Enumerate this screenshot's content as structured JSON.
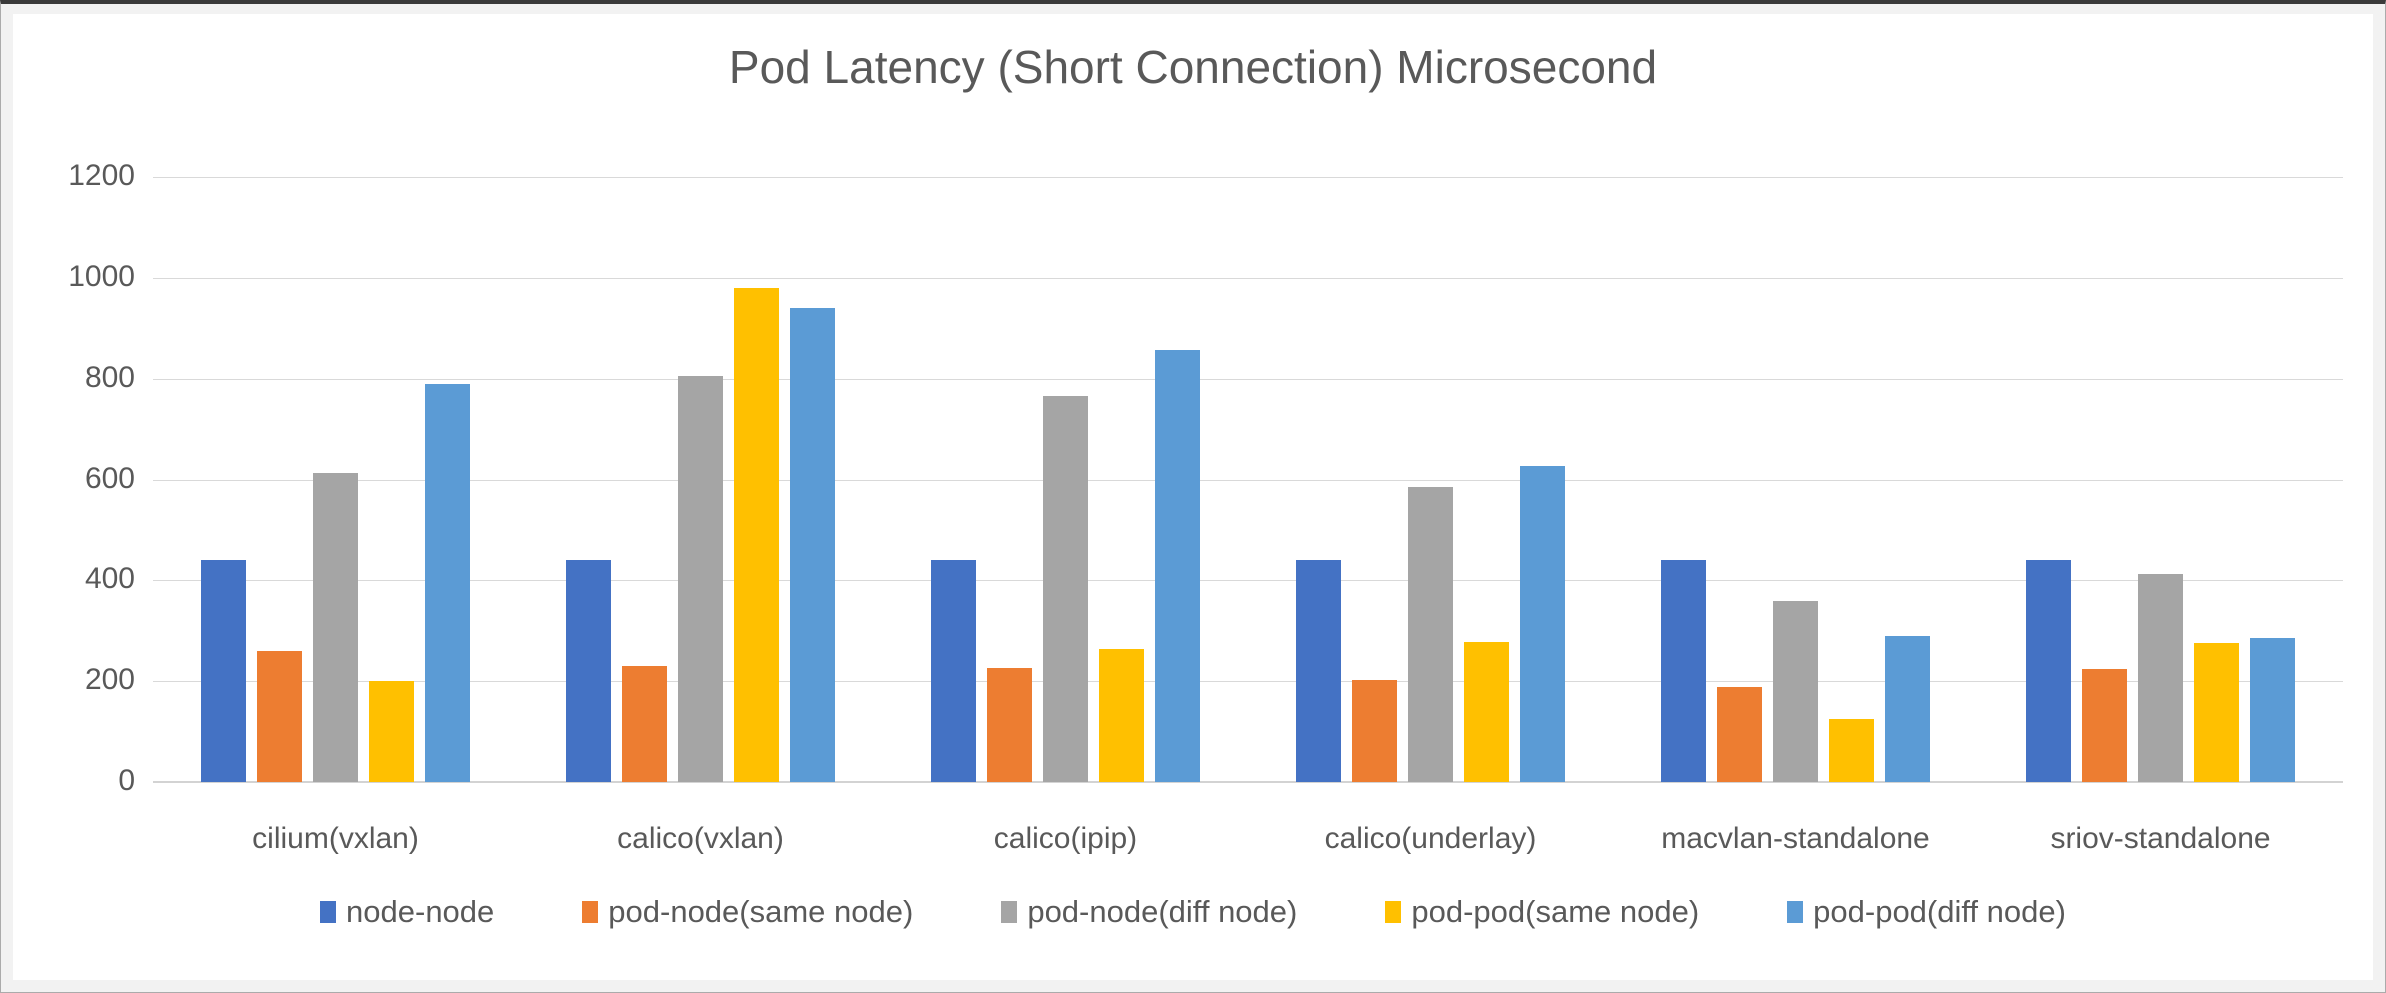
{
  "chart_data": {
    "type": "bar",
    "title": "Pod Latency (Short Connection) Microsecond",
    "categories": [
      "cilium(vxlan)",
      "calico(vxlan)",
      "calico(ipip)",
      "calico(underlay)",
      "macvlan-standalone",
      "sriov-standalone"
    ],
    "series": [
      {
        "name": "node-node",
        "color": "#4472C4",
        "values": [
          440,
          440,
          440,
          440,
          440,
          440
        ]
      },
      {
        "name": "pod-node(same node)",
        "color": "#ED7D31",
        "values": [
          260,
          230,
          226,
          203,
          188,
          224
        ]
      },
      {
        "name": "pod-node(diff node)",
        "color": "#A5A5A5",
        "values": [
          613,
          805,
          765,
          586,
          359,
          413
        ]
      },
      {
        "name": "pod-pod(same node)",
        "color": "#FFC000",
        "values": [
          200,
          980,
          264,
          278,
          125,
          276
        ]
      },
      {
        "name": "pod-pod(diff node)",
        "color": "#5B9BD5",
        "values": [
          790,
          940,
          856,
          627,
          290,
          285
        ]
      }
    ],
    "xlabel": "",
    "ylabel": "",
    "ylim": [
      0,
      1200
    ],
    "yticks": [
      0,
      200,
      400,
      600,
      800,
      1000,
      1200
    ],
    "grid": true,
    "legend_position": "bottom",
    "text_color": "#595959",
    "gridline_color": "#D9D9D9",
    "background": "#FFFFFF"
  }
}
